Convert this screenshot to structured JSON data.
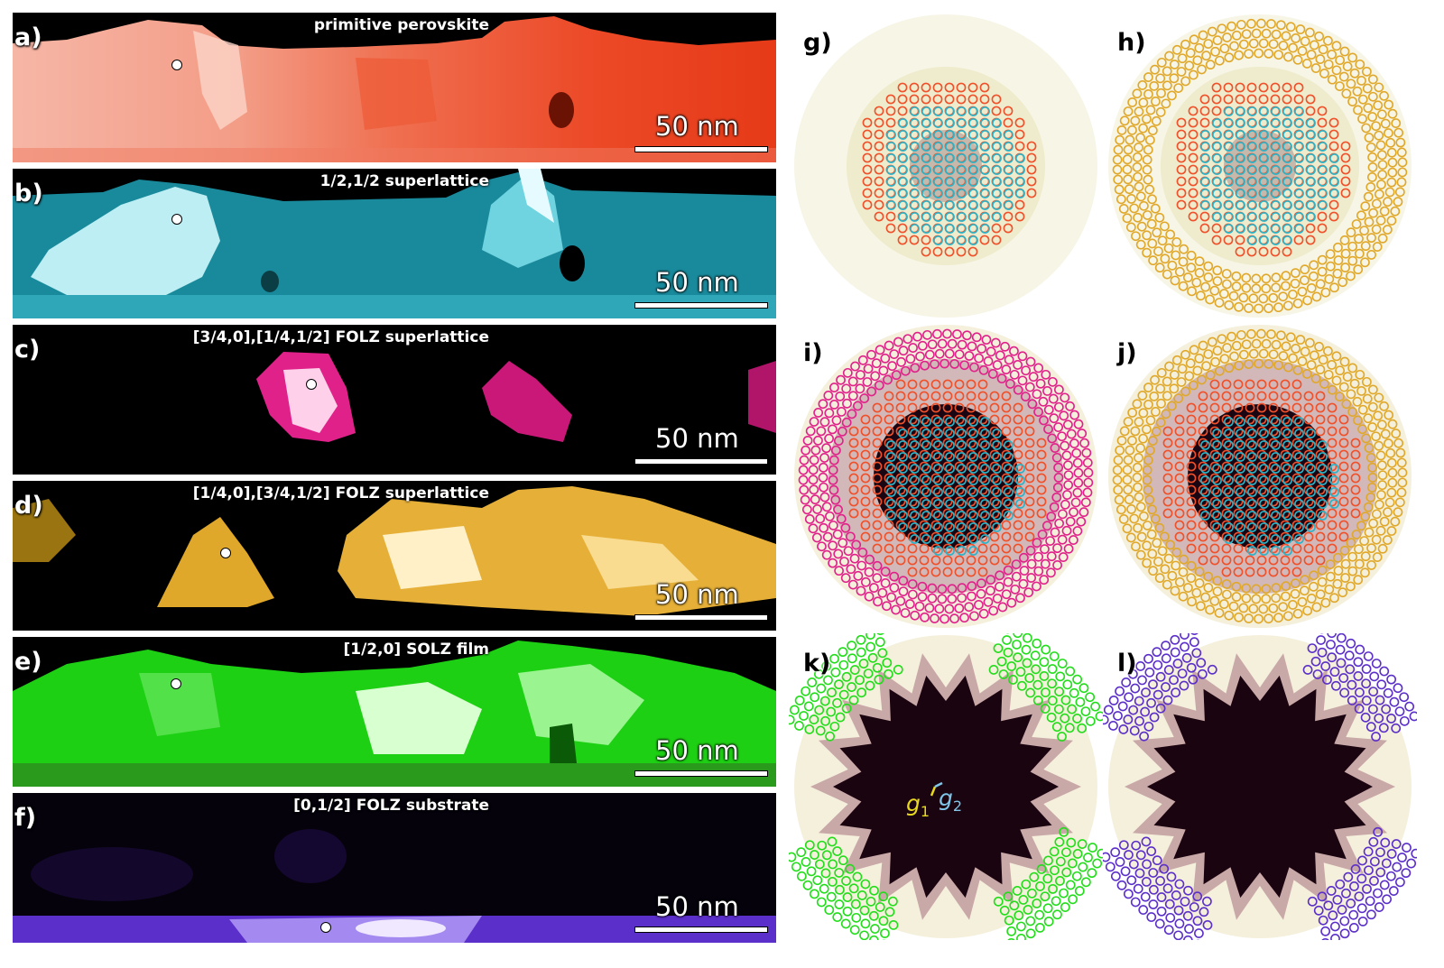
{
  "panels": {
    "a": {
      "label": "a)",
      "title": "primitive perovskite",
      "scalebar": "50 nm",
      "color": "#f04a28"
    },
    "b": {
      "label": "b)",
      "title": "1/2,1/2 superlattice",
      "scalebar": "50 nm",
      "color": "#2bb3c8"
    },
    "c": {
      "label": "c)",
      "title": "[3/4,0],[1/4,1/2] FOLZ superlattice",
      "scalebar": "50 nm",
      "color": "#e0218a"
    },
    "d": {
      "label": "d)",
      "title": "[1/4,0],[3/4,1/2] FOLZ superlattice",
      "scalebar": "50 nm",
      "color": "#e0a82a"
    },
    "e": {
      "label": "e)",
      "title": "[1/2,0] SOLZ film",
      "scalebar": "50 nm",
      "color": "#22dd1a"
    },
    "f": {
      "label": "f)",
      "title": "[0,1/2] FOLZ substrate",
      "scalebar": "50 nm",
      "color": "#5b2fc9"
    },
    "g": {
      "label": "g)"
    },
    "h": {
      "label": "h)"
    },
    "i": {
      "label": "i)"
    },
    "j": {
      "label": "j)"
    },
    "k": {
      "label": "k)",
      "vector1": "g",
      "vector1_sub": "1",
      "vector2": "g",
      "vector2_sub": "2"
    },
    "l": {
      "label": "l)"
    }
  },
  "ring_colors": {
    "primitive": "#f0502a",
    "half_half": "#2bb3c8",
    "folz_34": "#e0218a",
    "folz_14": "#e0a82a",
    "solz": "#22dd1a",
    "substrate": "#5b2fc9"
  }
}
